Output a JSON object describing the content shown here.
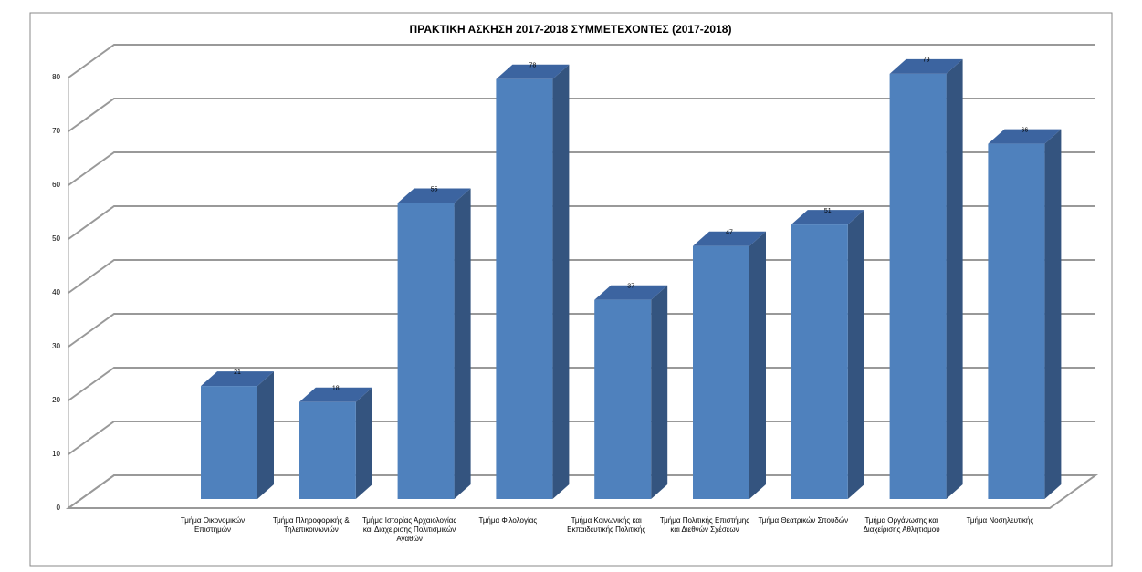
{
  "chart_data": {
    "type": "bar3d",
    "title": "ΠΡΑΚΤΙΚΗ ΑΣΚΗΣΗ 2017-2018 ΣΥΜΜΕΤΕΧΟΝΤΕΣ (2017-2018)",
    "categories": [
      "Τμήμα Οικονομικών Επιστημών",
      "Τμήμα Πληροφορικής & Τηλεπικοινωνιών",
      "Τμήμα Ιστορίας Αρχαιολογίας και Διαχείρισης Πολιτισμικών Αγαθών",
      "Τμήμα Φιλολογίας",
      "Τμήμα Κοινωνικής και Εκπαιδευτικής Πολιτικής",
      "Τμήμα Πολιτικής Επιστήμης και Διεθνών Σχέσεων",
      "Τμήμα Θεατρικών Σπουδών",
      "Τμήμα Οργάνωσης και Διαχείρισης Αθλητισμού",
      "Τμήμα Νοσηλευτικής"
    ],
    "values": [
      21,
      18,
      55,
      78,
      37,
      47,
      51,
      79,
      66
    ],
    "color": "#4f81bd",
    "ylim": [
      0,
      80
    ],
    "yticks": [
      0,
      10,
      20,
      30,
      40,
      50,
      60,
      70,
      80
    ],
    "grid": true
  }
}
